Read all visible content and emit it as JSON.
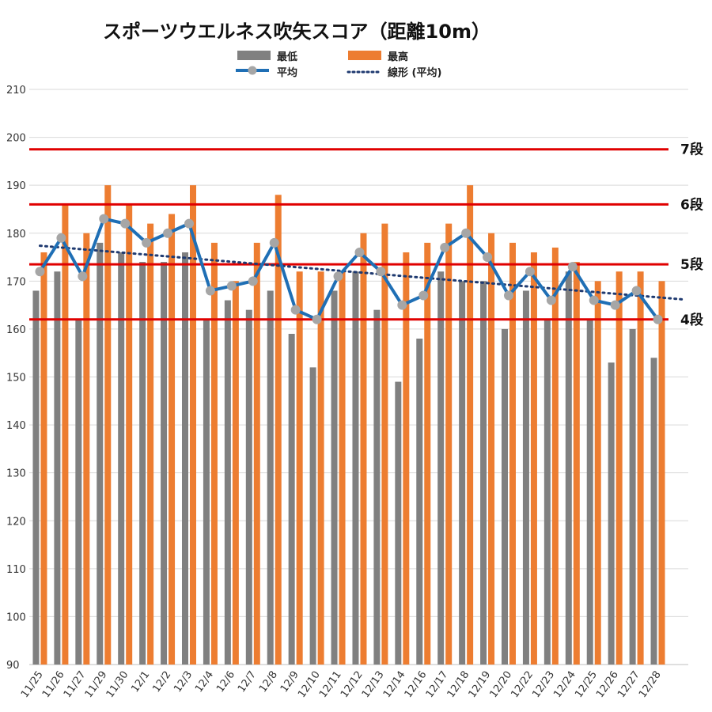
{
  "chart_data": {
    "type": "bar",
    "title": "スポーツウエルネス吹矢スコア（距離10m）",
    "categories": [
      "11/25",
      "11/26",
      "11/27",
      "11/29",
      "11/30",
      "12/1",
      "12/2",
      "12/3",
      "12/4",
      "12/6",
      "12/7",
      "12/8",
      "12/9",
      "12/10",
      "12/11",
      "12/12",
      "12/13",
      "12/14",
      "12/16",
      "12/17",
      "12/18",
      "12/19",
      "12/20",
      "12/22",
      "12/23",
      "12/24",
      "12/25",
      "12/26",
      "12/27",
      "12/28"
    ],
    "series": [
      {
        "name": "最低",
        "type": "bar",
        "color": "#808080",
        "values": [
          168,
          172,
          162,
          178,
          176,
          174,
          174,
          176,
          162,
          166,
          164,
          168,
          159,
          152,
          168,
          172,
          164,
          149,
          158,
          172,
          170,
          170,
          160,
          168,
          162,
          172,
          162,
          153,
          160,
          154
        ]
      },
      {
        "name": "最高",
        "type": "bar",
        "color": "#ED7D31",
        "values": [
          176,
          186,
          180,
          190,
          186,
          182,
          184,
          190,
          178,
          170,
          178,
          188,
          172,
          172,
          172,
          180,
          182,
          176,
          178,
          182,
          190,
          180,
          178,
          176,
          177,
          174,
          170,
          172,
          172,
          170
        ]
      },
      {
        "name": "平均",
        "type": "line",
        "color": "#1F6FB5",
        "values": [
          172,
          179,
          171,
          183,
          182,
          178,
          180,
          182,
          168,
          169,
          170,
          178,
          164,
          162,
          171,
          176,
          172,
          165,
          167,
          177,
          180,
          175,
          167,
          172,
          166,
          173,
          166,
          165,
          168,
          162
        ]
      }
    ],
    "trendline": {
      "name": "線形 (平均)",
      "color": "#1F3A70",
      "style": "dotted"
    },
    "reference_lines": [
      {
        "label": "7段",
        "value": 197.5,
        "color": "#E00000"
      },
      {
        "label": "6段",
        "value": 186,
        "color": "#E00000"
      },
      {
        "label": "5段",
        "value": 173.5,
        "color": "#E00000"
      },
      {
        "label": "4段",
        "value": 162,
        "color": "#E00000"
      }
    ],
    "ylim": [
      90,
      210
    ],
    "yticks": [
      90,
      100,
      110,
      120,
      130,
      140,
      150,
      160,
      170,
      180,
      190,
      200,
      210
    ],
    "grid": true,
    "legend_position": "top"
  }
}
